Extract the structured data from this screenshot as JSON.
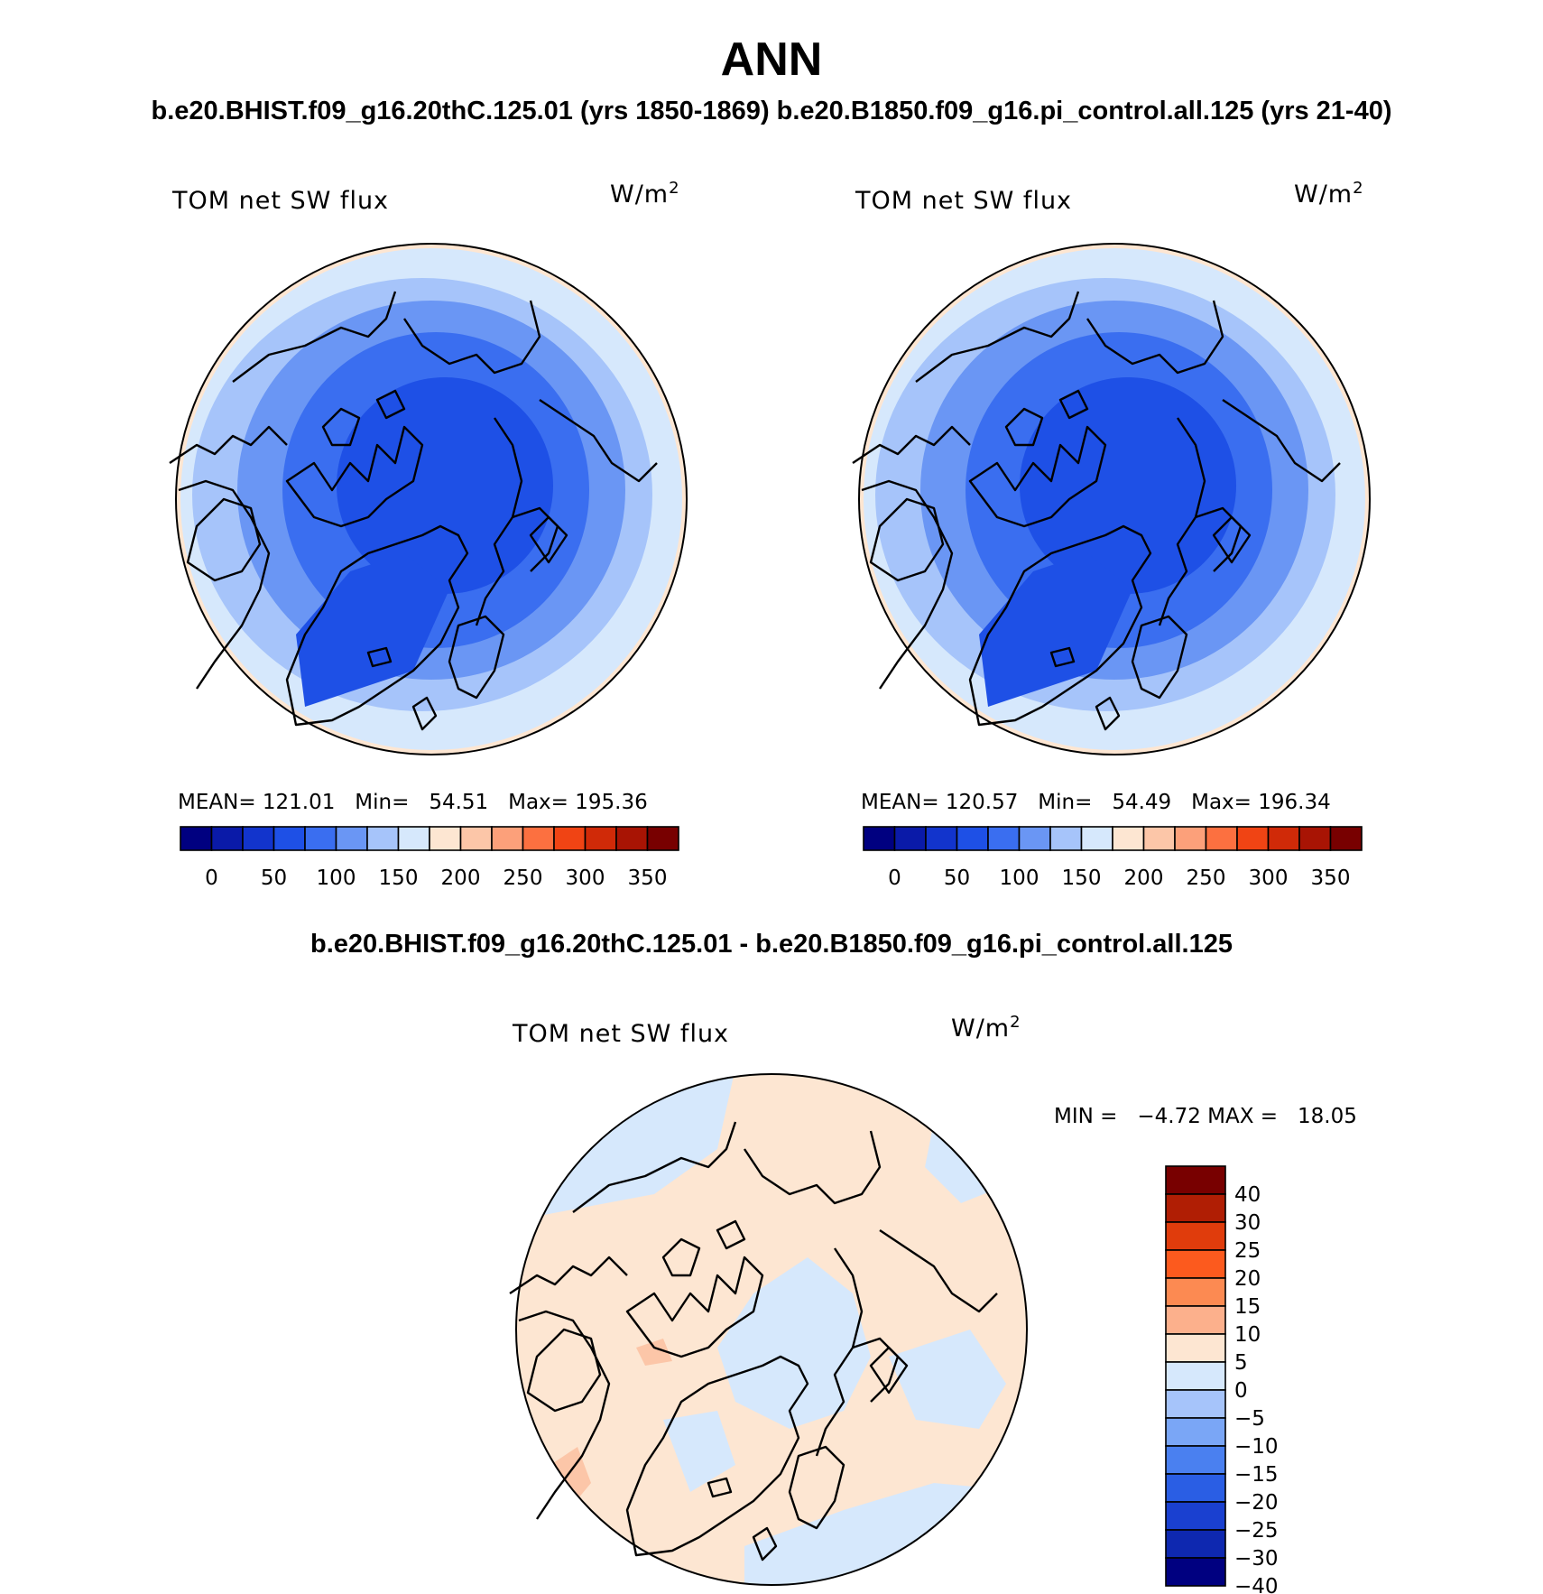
{
  "title": "ANN",
  "subtitle_top": "b.e20.BHIST.f09_g16.20thC.125.01 (yrs 1850-1869)  b.e20.B1850.f09_g16.pi_control.all.125 (yrs 21-40)",
  "subtitle_diff": "b.e20.BHIST.f09_g16.20thC.125.01 - b.e20.B1850.f09_g16.pi_control.all.125",
  "panels": [
    {
      "label": "TOM net SW flux",
      "units_base": "W/m",
      "units_exp": "2",
      "stats": "MEAN= 121.01   Min=   54.51   Max= 195.36"
    },
    {
      "label": "TOM net SW flux",
      "units_base": "W/m",
      "units_exp": "2",
      "stats": "MEAN= 120.57   Min=   54.49   Max= 196.34"
    },
    {
      "label": "TOM net SW flux",
      "units_base": "W/m",
      "units_exp": "2",
      "stats": "MIN =   −4.72 MAX =   18.05"
    }
  ],
  "abs_colorbar": {
    "colors": [
      "#000080",
      "#0a1aa8",
      "#1234cc",
      "#1e50e6",
      "#3a6ef0",
      "#6a96f4",
      "#a6c4fa",
      "#d6e8fc",
      "#fde6d2",
      "#fcc6a8",
      "#fca07a",
      "#fc7040",
      "#f04414",
      "#d02a08",
      "#a81404",
      "#780000"
    ],
    "ticks": [
      "0",
      "50",
      "100",
      "150",
      "200",
      "250",
      "300",
      "350"
    ]
  },
  "diff_colorbar": {
    "colors": [
      "#780000",
      "#b01e04",
      "#e03c0c",
      "#fc5a1e",
      "#fc8a52",
      "#fcb08c",
      "#fde6d2",
      "#d6e8fc",
      "#a6c4fa",
      "#7aa6f6",
      "#4a80f0",
      "#2a5ee4",
      "#1a40d0",
      "#0e28b0",
      "#000080"
    ],
    "ticks": [
      "40",
      "30",
      "25",
      "20",
      "15",
      "10",
      "5",
      "0",
      "−5",
      "−10",
      "−15",
      "−20",
      "−25",
      "−30",
      "−40"
    ]
  }
}
